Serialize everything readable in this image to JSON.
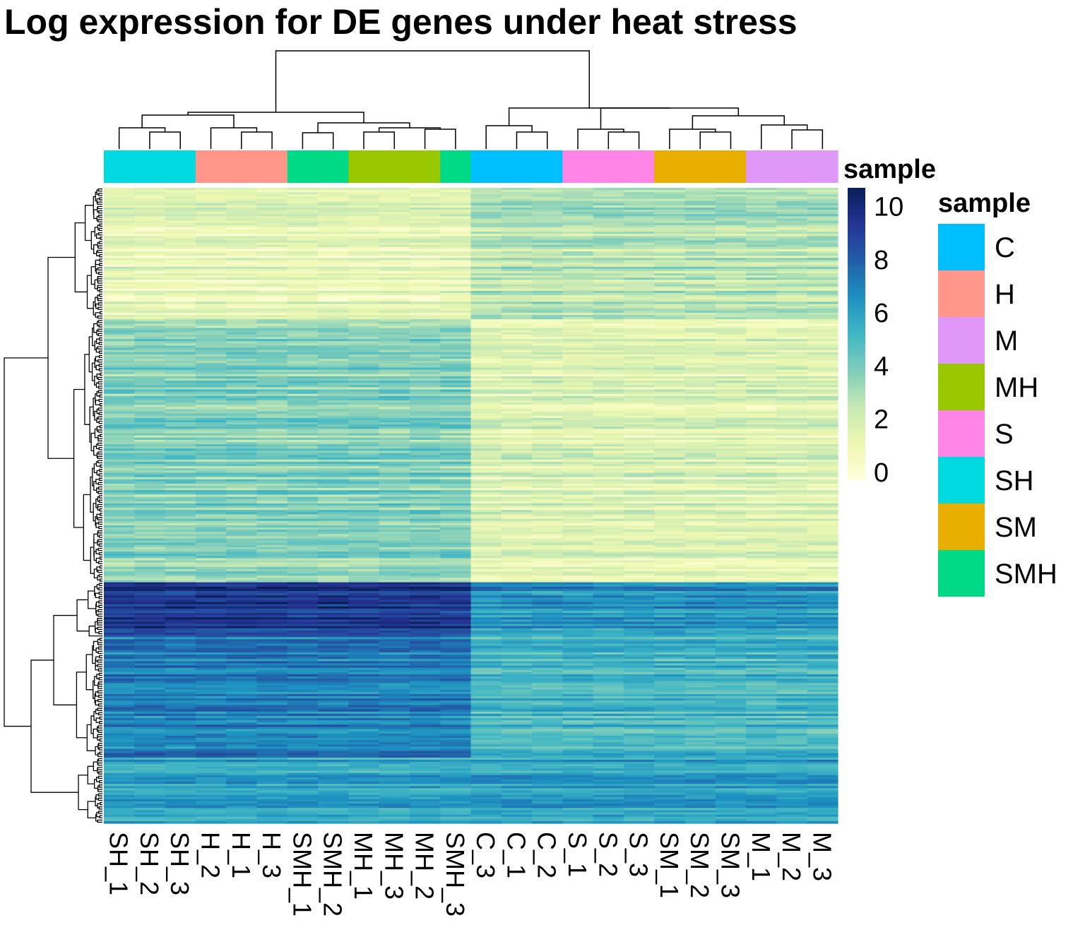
{
  "chart_data": {
    "type": "heatmap",
    "title": "Log expression for DE genes under heat stress",
    "columns": [
      "SH_1",
      "SH_2",
      "SH_3",
      "H_2",
      "H_1",
      "H_3",
      "SMH_1",
      "SMH_2",
      "MH_1",
      "MH_3",
      "MH_2",
      "SMH_3",
      "C_3",
      "C_1",
      "C_2",
      "S_1",
      "S_2",
      "S_3",
      "SM_1",
      "SM_2",
      "SM_3",
      "M_1",
      "M_2",
      "M_3"
    ],
    "column_groups": [
      "SH",
      "SH",
      "SH",
      "H",
      "H",
      "H",
      "SMH",
      "SMH",
      "MH",
      "MH",
      "MH",
      "SMH",
      "C",
      "C",
      "C",
      "S",
      "S",
      "S",
      "SM",
      "SM",
      "SM",
      "M",
      "M",
      "M"
    ],
    "annotation": {
      "title": "sample",
      "levels": [
        {
          "name": "C",
          "color": "#00BFFF"
        },
        {
          "name": "H",
          "color": "#FF9689"
        },
        {
          "name": "M",
          "color": "#E098F8"
        },
        {
          "name": "MH",
          "color": "#97C800"
        },
        {
          "name": "S",
          "color": "#FE85E6"
        },
        {
          "name": "SH",
          "color": "#00D9E0"
        },
        {
          "name": "SM",
          "color": "#E8AF00"
        },
        {
          "name": "SMH",
          "color": "#00D986"
        }
      ]
    },
    "row_clusters": [
      {
        "rows": 60,
        "values": [
          1.5,
          1.5,
          3.0,
          3.0
        ],
        "note_text": ""
      },
      {
        "rows": 120,
        "values": [
          4.0,
          4.0,
          1.5,
          2.2
        ],
        "note_text": ""
      },
      {
        "rows": 25,
        "values": [
          9.5,
          9.5,
          6.5,
          6.8
        ],
        "note_text": ""
      },
      {
        "rows": 55,
        "values": [
          7.2,
          7.4,
          5.2,
          5.5
        ],
        "note_text": ""
      },
      {
        "rows": 30,
        "values": [
          6.0,
          6.5,
          6.6,
          6.2
        ],
        "note_text": ""
      }
    ],
    "legend": {
      "title": "sample",
      "ticks": [
        0,
        2,
        4,
        6,
        8,
        10
      ],
      "range": [
        0,
        11
      ],
      "colors": [
        "#FFFFD9",
        "#EDF8B1",
        "#C7E9B4",
        "#7FCDBB",
        "#41B6C4",
        "#1D91C0",
        "#225EA8",
        "#253494",
        "#081D58"
      ]
    },
    "colorbar_title": "sample"
  }
}
